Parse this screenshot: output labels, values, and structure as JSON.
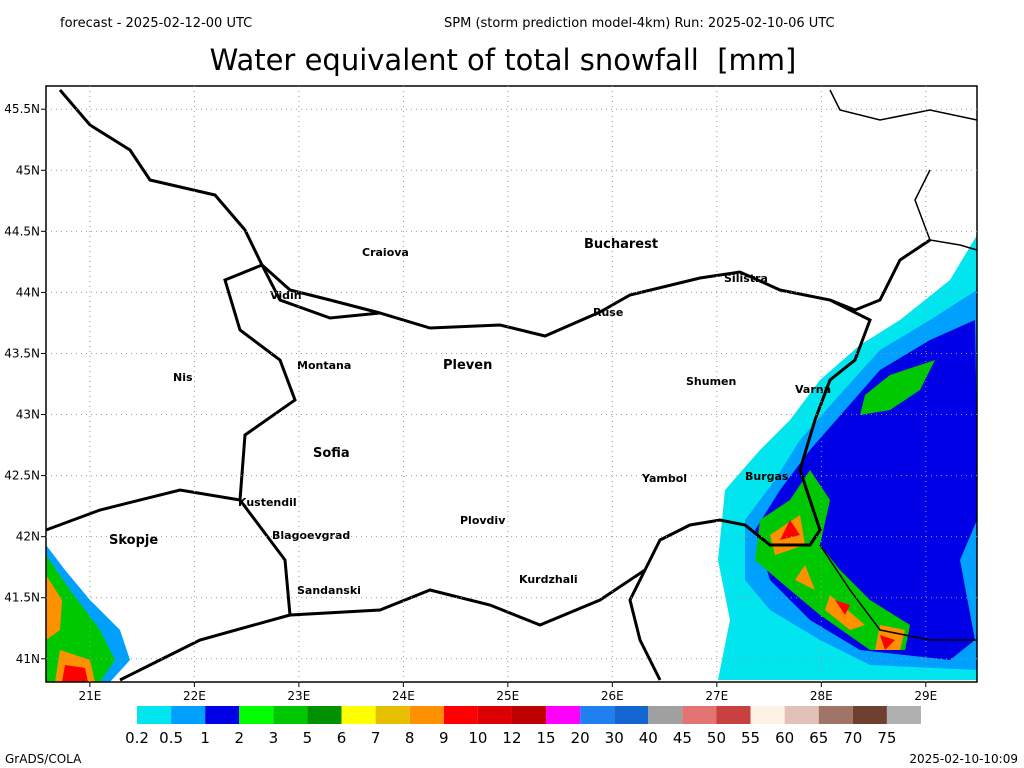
{
  "header": {
    "left": "forecast - 2025-02-12-00 UTC",
    "right": "SPM (storm prediction model-4km) Run: 2025-02-10-06 UTC",
    "title": "Water equivalent of total snowfall  [mm]"
  },
  "map": {
    "xlim": [
      20.58,
      29.49
    ],
    "ylim": [
      40.81,
      45.69
    ],
    "xticks": [
      {
        "value": 21,
        "label": "21E"
      },
      {
        "value": 22,
        "label": "22E"
      },
      {
        "value": 23,
        "label": "23E"
      },
      {
        "value": 24,
        "label": "24E"
      },
      {
        "value": 25,
        "label": "25E"
      },
      {
        "value": 26,
        "label": "26E"
      },
      {
        "value": 27,
        "label": "27E"
      },
      {
        "value": 28,
        "label": "28E"
      },
      {
        "value": 29,
        "label": "29E"
      }
    ],
    "yticks": [
      {
        "value": 41,
        "label": "41N"
      },
      {
        "value": 41.5,
        "label": "41.5N"
      },
      {
        "value": 42,
        "label": "42N"
      },
      {
        "value": 42.5,
        "label": "42.5N"
      },
      {
        "value": 43,
        "label": "43N"
      },
      {
        "value": 43.5,
        "label": "43.5N"
      },
      {
        "value": 44,
        "label": "44N"
      },
      {
        "value": 44.5,
        "label": "44.5N"
      },
      {
        "value": 45,
        "label": "45N"
      },
      {
        "value": 45.5,
        "label": "45.5N"
      }
    ],
    "grid": true,
    "cities": [
      "Craiova",
      "Bucharest",
      "Vidin",
      "Silistra",
      "Ruse",
      "Montana",
      "Pleven",
      "Nis",
      "Shumen",
      "Varna",
      "Sofia",
      "Yambol",
      "Burgas",
      "Kustendil",
      "Skopje",
      "Blagoevgrad",
      "Plovdiv",
      "Kurdzhali",
      "Sandanski"
    ]
  },
  "colorbar": {
    "levels": [
      0.2,
      0.5,
      1,
      2,
      3,
      5,
      6,
      7,
      8,
      9,
      10,
      12,
      15,
      20,
      30,
      40,
      45,
      50,
      55,
      60,
      65,
      70,
      75
    ],
    "colors": [
      "#00e5ee",
      "#00a0ff",
      "#0000e6",
      "#00ff00",
      "#00c800",
      "#009000",
      "#ffff00",
      "#e6c000",
      "#ff9000",
      "#ff0000",
      "#dc0000",
      "#bc0000",
      "#ff00ff",
      "#2080f0",
      "#1464d2",
      "#a0a0a0",
      "#e47474",
      "#c84040",
      "#fdf2e6",
      "#e2c2b6",
      "#a07466",
      "#6e4032",
      "#b0b0b0"
    ]
  },
  "footer": {
    "left": "GrADS/COLA",
    "right": "2025-02-10-10:09"
  }
}
